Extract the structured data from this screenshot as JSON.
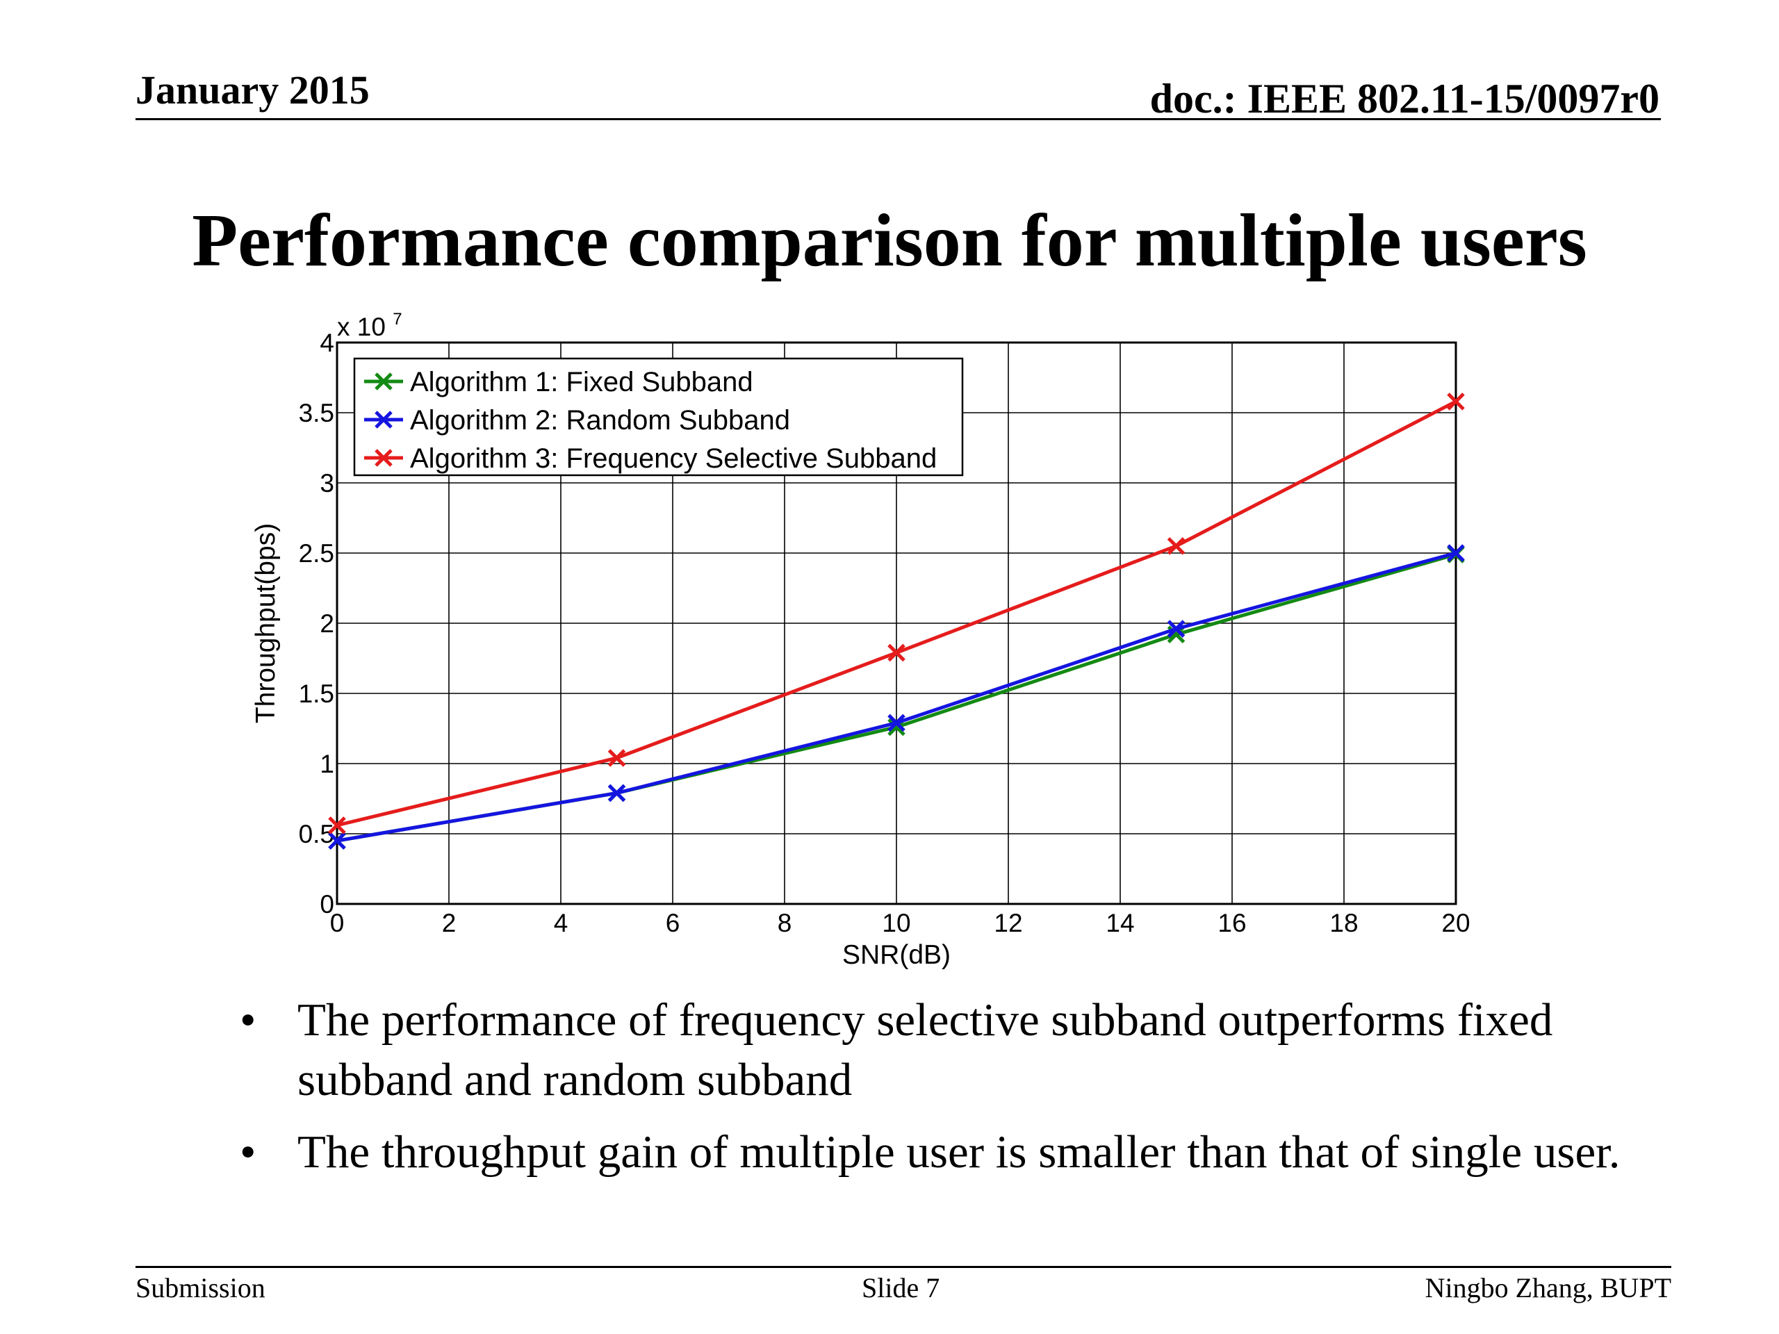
{
  "header": {
    "date": "January 2015",
    "doc": "doc.: IEEE 802.11-15/0097r0"
  },
  "title": "Performance comparison for multiple users",
  "chart_data": {
    "type": "line",
    "xlabel": "SNR(dB)",
    "ylabel": "Throughput(bps)",
    "y_multiplier_text": "x 10",
    "y_multiplier_exp": "7",
    "xlim": [
      0,
      20
    ],
    "ylim": [
      0,
      4
    ],
    "x_ticks": [
      "0",
      "2",
      "4",
      "6",
      "8",
      "10",
      "12",
      "14",
      "16",
      "18",
      "20"
    ],
    "y_ticks": [
      "0",
      "0.5",
      "1",
      "1.5",
      "2",
      "2.5",
      "3",
      "3.5",
      "4"
    ],
    "grid": true,
    "legend_position": "top-left",
    "x": [
      0,
      5,
      10,
      15,
      20
    ],
    "series": [
      {
        "name": "Algorithm 1: Fixed Subband",
        "color": "#138a13",
        "values": [
          0.45,
          0.79,
          1.26,
          1.92,
          2.49
        ]
      },
      {
        "name": "Algorithm 2: Random Subband",
        "color": "#1515e0",
        "values": [
          0.45,
          0.79,
          1.29,
          1.96,
          2.5
        ]
      },
      {
        "name": "Algorithm 3: Frequency Selective Subband",
        "color": "#e51c1c",
        "values": [
          0.56,
          1.04,
          1.79,
          2.55,
          3.58
        ]
      }
    ]
  },
  "bullets": [
    {
      "marker": "•",
      "text": "The performance of frequency selective subband outperforms fixed subband and random subband"
    },
    {
      "marker": "•",
      "text": "The throughput gain of multiple user is smaller than that of single user."
    }
  ],
  "footer": {
    "left": "Submission",
    "center": "Slide 7",
    "right": "Ningbo Zhang, BUPT"
  }
}
